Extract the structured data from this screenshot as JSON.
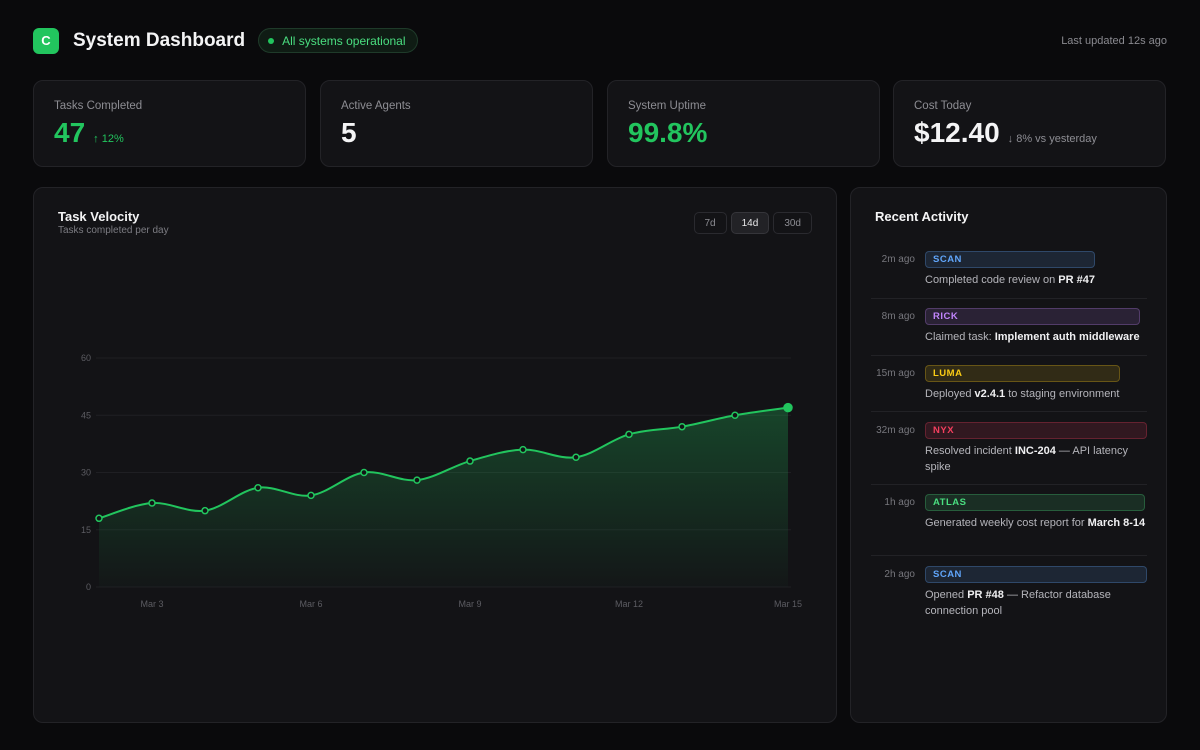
{
  "header": {
    "logo": "C",
    "title": "System Dashboard",
    "status": "All systems operational",
    "updated": "Last updated 12s ago"
  },
  "stats": [
    {
      "label": "Tasks Completed",
      "value": "47",
      "delta": "↑ 12%"
    },
    {
      "label": "Active Agents",
      "value": "5"
    },
    {
      "label": "System Uptime",
      "value": "99.8%"
    },
    {
      "label": "Cost Today",
      "value": "$12.40",
      "delta": "↓ 8% vs yesterday"
    }
  ],
  "chart": {
    "title": "Task Velocity",
    "subtitle": "Tasks completed per day",
    "ranges": [
      "7d",
      "14d",
      "30d"
    ],
    "active_range": "14d"
  },
  "chart_data": {
    "type": "area",
    "title": "Task Velocity",
    "subtitle": "Tasks completed per day",
    "x": [
      "Mar 2",
      "Mar 3",
      "Mar 4",
      "Mar 5",
      "Mar 6",
      "Mar 7",
      "Mar 8",
      "Mar 9",
      "Mar 10",
      "Mar 11",
      "Mar 12",
      "Mar 13",
      "Mar 14",
      "Mar 15"
    ],
    "values": [
      18,
      22,
      20,
      26,
      24,
      30,
      28,
      33,
      36,
      34,
      40,
      42,
      45,
      47
    ],
    "xticks": [
      "Mar 3",
      "Mar 6",
      "Mar 9",
      "Mar 12",
      "Mar 15"
    ],
    "yticks": [
      0,
      15,
      30,
      45,
      60
    ],
    "ylim": [
      0,
      60
    ],
    "grid": true,
    "color": "#22c55e"
  },
  "activity": {
    "title": "Recent Activity",
    "items": [
      {
        "time": "2m ago",
        "agent": "SCAN",
        "color": "#60a5fa",
        "pre": "Completed code review on ",
        "bold": "PR #47",
        "post": ""
      },
      {
        "time": "8m ago",
        "agent": "RICK",
        "color": "#c084fc",
        "pre": "Claimed task: ",
        "bold": "Implement auth middleware",
        "post": ""
      },
      {
        "time": "15m ago",
        "agent": "LUMA",
        "color": "#facc15",
        "pre": "Deployed ",
        "bold": "v2.4.1",
        "post": " to staging environment"
      },
      {
        "time": "32m ago",
        "agent": "NYX",
        "color": "#f43f5e",
        "pre": "Resolved incident ",
        "bold": "INC-204",
        "post": " — API latency spike"
      },
      {
        "time": "1h ago",
        "agent": "ATLAS",
        "color": "#4ade80",
        "pre": "Generated weekly cost report for ",
        "bold": "March 8-14",
        "post": ""
      },
      {
        "time": "2h ago",
        "agent": "SCAN",
        "color": "#60a5fa",
        "pre": "Opened ",
        "bold": "PR #48",
        "post": " — Refactor database connection pool"
      }
    ]
  }
}
